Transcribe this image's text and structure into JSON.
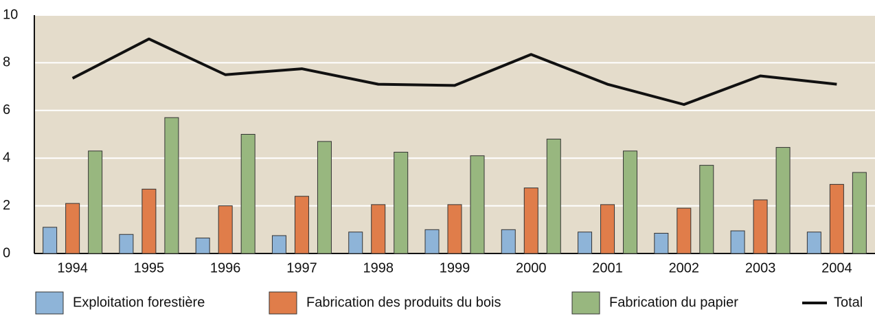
{
  "chart_data": {
    "type": "bar",
    "categories": [
      "1994",
      "1995",
      "1996",
      "1997",
      "1998",
      "1999",
      "2000",
      "2001",
      "2002",
      "2003",
      "2004"
    ],
    "series": [
      {
        "name": "Exploitation forestière",
        "color": "#8eb4d8",
        "values": [
          1.1,
          0.8,
          0.65,
          0.75,
          0.9,
          1.0,
          1.0,
          0.9,
          0.85,
          0.95,
          0.9
        ]
      },
      {
        "name": "Fabrication des produits du bois",
        "color": "#e07d4a",
        "values": [
          2.1,
          2.7,
          2.0,
          2.4,
          2.05,
          2.05,
          2.75,
          2.05,
          1.9,
          2.25,
          2.9
        ]
      },
      {
        "name": "Fabrication du papier",
        "color": "#98b77f",
        "values": [
          4.3,
          5.7,
          5.0,
          4.7,
          4.25,
          4.1,
          4.8,
          4.3,
          3.7,
          4.45,
          3.4
        ]
      }
    ],
    "line_series": {
      "name": "Total",
      "color": "#111111",
      "values": [
        7.35,
        9.0,
        7.5,
        7.75,
        7.1,
        7.05,
        8.35,
        7.1,
        6.25,
        7.45,
        7.1
      ]
    },
    "ylim": [
      0,
      10
    ],
    "yticks": [
      0,
      2,
      4,
      6,
      8,
      10
    ],
    "grid": true,
    "legend": "bottom"
  }
}
